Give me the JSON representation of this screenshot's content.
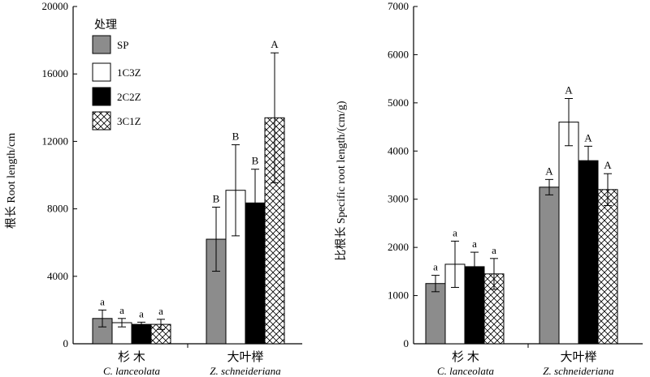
{
  "chart_data": [
    {
      "type": "bar",
      "ylabel": "根长 Root length/cm",
      "ylim": [
        0,
        20000
      ],
      "yticks": [
        0,
        4000,
        8000,
        12000,
        16000,
        20000
      ],
      "grid": false,
      "categories": [
        {
          "cn": "杉 木",
          "en": "C. lanceolata"
        },
        {
          "cn": "大叶榉",
          "en": "Z. schneideriana"
        }
      ],
      "legend": {
        "title": "处理",
        "placement": "top-left"
      },
      "series": [
        {
          "name": "SP",
          "fill": "gray",
          "values": [
            1500,
            6200
          ],
          "errors": [
            500,
            1900
          ],
          "sig": [
            "a",
            "B"
          ]
        },
        {
          "name": "1C3Z",
          "fill": "white",
          "values": [
            1250,
            9100
          ],
          "errors": [
            250,
            2700
          ],
          "sig": [
            "a",
            "B"
          ]
        },
        {
          "name": "2C2Z",
          "fill": "black",
          "values": [
            1150,
            8350
          ],
          "errors": [
            130,
            2000
          ],
          "sig": [
            "a",
            "B"
          ]
        },
        {
          "name": "3C1Z",
          "fill": "hatch",
          "values": [
            1150,
            13400
          ],
          "errors": [
            300,
            3850
          ],
          "sig": [
            "a",
            "A"
          ]
        }
      ]
    },
    {
      "type": "bar",
      "ylabel": "比根长 Specific root length/(cm/g)",
      "ylim": [
        0,
        7000
      ],
      "yticks": [
        0,
        1000,
        2000,
        3000,
        4000,
        5000,
        6000,
        7000
      ],
      "grid": false,
      "categories": [
        {
          "cn": "杉 木",
          "en": "C. lanceolata"
        },
        {
          "cn": "大叶榉",
          "en": "Z. schneideriana"
        }
      ],
      "series": [
        {
          "name": "SP",
          "fill": "gray",
          "values": [
            1250,
            3250
          ],
          "errors": [
            170,
            160
          ],
          "sig": [
            "a",
            "A"
          ]
        },
        {
          "name": "1C3Z",
          "fill": "white",
          "values": [
            1650,
            4600
          ],
          "errors": [
            480,
            490
          ],
          "sig": [
            "a",
            "A"
          ]
        },
        {
          "name": "2C2Z",
          "fill": "black",
          "values": [
            1600,
            3800
          ],
          "errors": [
            300,
            300
          ],
          "sig": [
            "a",
            "A"
          ]
        },
        {
          "name": "3C1Z",
          "fill": "hatch",
          "values": [
            1450,
            3200
          ],
          "errors": [
            320,
            330
          ],
          "sig": [
            "a",
            "A"
          ]
        }
      ]
    }
  ],
  "colors": {
    "gray": "#8c8c8c",
    "white": "#ffffff",
    "black": "#000000",
    "hatch": "#ffffff",
    "stroke": "#000000"
  }
}
